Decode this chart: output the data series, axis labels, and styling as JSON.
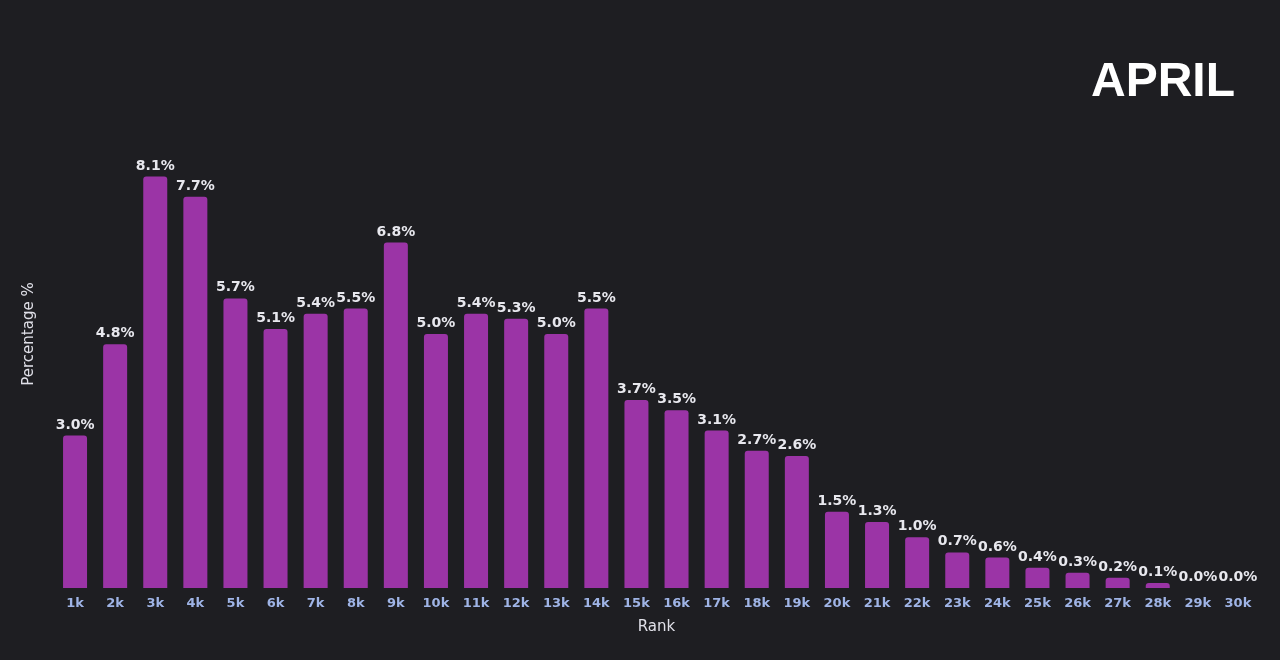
{
  "chart_data": {
    "type": "bar",
    "title": "APRIL",
    "xlabel": "Rank",
    "ylabel": "Percentage %",
    "categories": [
      "1k",
      "2k",
      "3k",
      "4k",
      "5k",
      "6k",
      "7k",
      "8k",
      "9k",
      "10k",
      "11k",
      "12k",
      "13k",
      "14k",
      "15k",
      "16k",
      "17k",
      "18k",
      "19k",
      "20k",
      "21k",
      "22k",
      "23k",
      "24k",
      "25k",
      "26k",
      "27k",
      "28k",
      "29k",
      "30k"
    ],
    "values": [
      3.0,
      4.8,
      8.1,
      7.7,
      5.7,
      5.1,
      5.4,
      5.5,
      6.8,
      5.0,
      5.4,
      5.3,
      5.0,
      5.5,
      3.7,
      3.5,
      3.1,
      2.7,
      2.6,
      1.5,
      1.3,
      1.0,
      0.7,
      0.6,
      0.4,
      0.3,
      0.2,
      0.1,
      0.0,
      0.0
    ],
    "value_labels": [
      "3.0%",
      "4.8%",
      "8.1%",
      "7.7%",
      "5.7%",
      "5.1%",
      "5.4%",
      "5.5%",
      "6.8%",
      "5.0%",
      "5.4%",
      "5.3%",
      "5.0%",
      "5.5%",
      "3.7%",
      "3.5%",
      "3.1%",
      "2.7%",
      "2.6%",
      "1.5%",
      "1.3%",
      "1.0%",
      "0.7%",
      "0.6%",
      "0.4%",
      "0.3%",
      "0.2%",
      "0.1%",
      "0.0%",
      "0.0%"
    ],
    "color": "#9b34a6",
    "tick_labels": "x"
  }
}
